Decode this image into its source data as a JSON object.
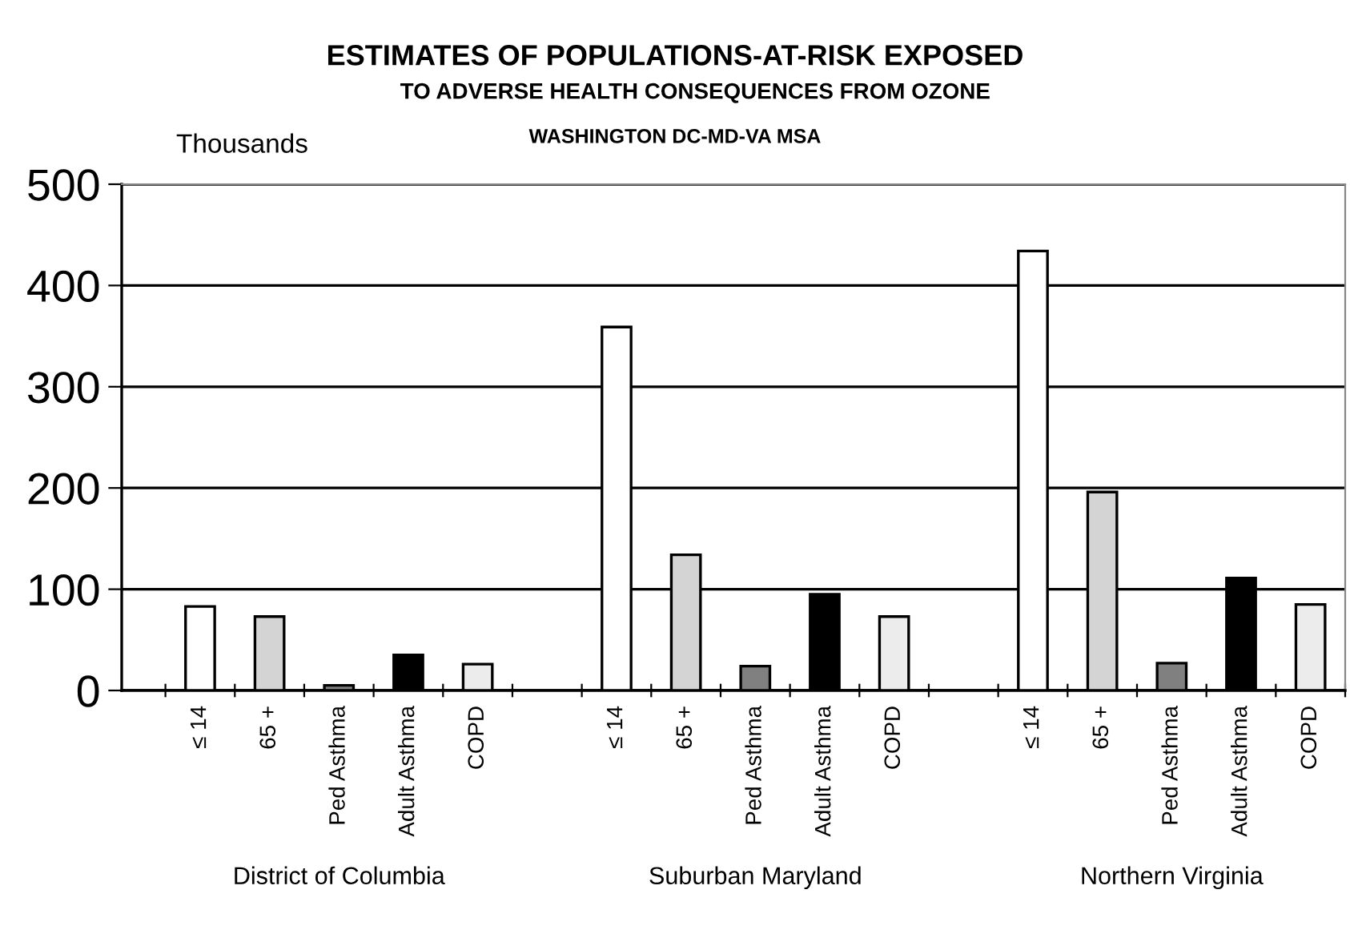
{
  "chart_data": {
    "type": "bar",
    "title": "ESTIMATES OF POPULATIONS-AT-RISK EXPOSED",
    "subtitle": "TO ADVERSE HEALTH CONSEQUENCES FROM OZONE",
    "ylabel": "Thousands",
    "annotations": [
      "WASHINGTON DC-MD-VA MSA",
      "District of Columbia",
      "Suburban Maryland",
      "Northern Virginia"
    ],
    "categories": [
      "≤ 14",
      "65 +",
      "Ped Asthma",
      "Adult Asthma",
      "COPD",
      null,
      "≤ 14",
      "65 +",
      "Ped Asthma",
      "Adult Asthma",
      "COPD",
      null,
      "≤ 14",
      "65 +",
      "Ped Asthma",
      "Adult Asthma",
      "COPD"
    ],
    "values": [
      83,
      73,
      5,
      35,
      26,
      null,
      359,
      134,
      24,
      95,
      73,
      null,
      434,
      196,
      27,
      111,
      85
    ],
    "colors": [
      "#ffffff",
      "#d4d4d4",
      "#808080",
      "#000000",
      "#ececec",
      null,
      "#ffffff",
      "#d4d4d4",
      "#808080",
      "#000000",
      "#ececec",
      null,
      "#ffffff",
      "#d4d4d4",
      "#808080",
      "#000000",
      "#ececec"
    ],
    "ylim": [
      0,
      500
    ],
    "yticks": [
      0,
      100,
      200,
      300,
      400,
      500
    ],
    "grid": "y"
  }
}
